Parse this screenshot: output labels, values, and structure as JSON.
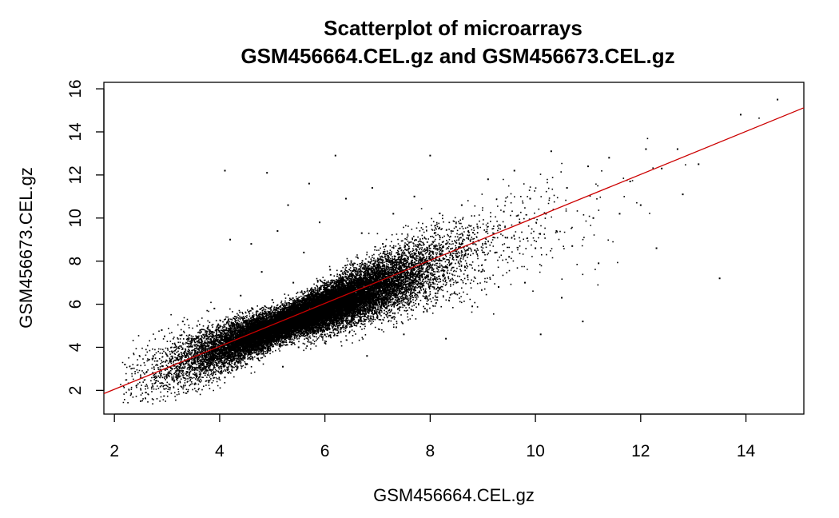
{
  "chart_data": {
    "type": "scatter",
    "title": "Scatterplot of microarrays",
    "subtitle": "GSM456664.CEL.gz and GSM456673.CEL.gz",
    "xlabel": "GSM456664.CEL.gz",
    "ylabel": "GSM456673.CEL.gz",
    "xlim": [
      1.8,
      15.1
    ],
    "ylim": [
      0.9,
      16.3
    ],
    "x_ticks": [
      2,
      4,
      6,
      8,
      10,
      12,
      14
    ],
    "y_ticks": [
      2,
      4,
      6,
      8,
      10,
      12,
      14,
      16
    ],
    "x_tick_labels": [
      "2",
      "4",
      "6",
      "8",
      "10",
      "12",
      "14"
    ],
    "y_tick_labels": [
      "2",
      "4",
      "6",
      "8",
      "10",
      "12",
      "14",
      "16"
    ],
    "grid": false,
    "legend": "none",
    "point_color": "#000000",
    "fit_line": {
      "color": "#cc0000",
      "points": [
        [
          1.8,
          1.85
        ],
        [
          15.1,
          15.12
        ]
      ]
    },
    "series": [
      {
        "points": [
          [
            2.2,
            3.2
          ],
          [
            2.5,
            1.5
          ],
          [
            2.6,
            1.9
          ],
          [
            2.8,
            2.6
          ],
          [
            2.9,
            4.8
          ],
          [
            3.1,
            2.5
          ],
          [
            3.2,
            3.5
          ],
          [
            3.3,
            2.9
          ],
          [
            3.3,
            5.2
          ],
          [
            3.5,
            3.6
          ],
          [
            3.6,
            4.3
          ],
          [
            3.7,
            3.0
          ],
          [
            3.9,
            3.9
          ],
          [
            3.9,
            5.8
          ],
          [
            4.0,
            4.2
          ],
          [
            4.1,
            2.6
          ],
          [
            4.1,
            12.2
          ],
          [
            4.2,
            4.8
          ],
          [
            4.2,
            9.0
          ],
          [
            4.3,
            3.6
          ],
          [
            4.4,
            4.5
          ],
          [
            4.4,
            6.4
          ],
          [
            4.5,
            5.1
          ],
          [
            4.5,
            3.2
          ],
          [
            4.6,
            4.4
          ],
          [
            4.6,
            8.8
          ],
          [
            4.7,
            5.5
          ],
          [
            4.7,
            3.9
          ],
          [
            4.8,
            4.6
          ],
          [
            4.8,
            7.5
          ],
          [
            4.9,
            5.0
          ],
          [
            4.9,
            12.1
          ],
          [
            5.0,
            4.3
          ],
          [
            5.0,
            6.2
          ],
          [
            5.1,
            5.2
          ],
          [
            5.1,
            9.4
          ],
          [
            5.2,
            4.7
          ],
          [
            5.2,
            3.1
          ],
          [
            5.3,
            5.6
          ],
          [
            5.3,
            10.6
          ],
          [
            5.4,
            5.0
          ],
          [
            5.4,
            7.0
          ],
          [
            5.5,
            5.3
          ],
          [
            5.5,
            4.0
          ],
          [
            5.6,
            5.8
          ],
          [
            5.6,
            8.4
          ],
          [
            5.7,
            5.4
          ],
          [
            5.7,
            11.6
          ],
          [
            5.8,
            6.0
          ],
          [
            5.8,
            4.5
          ],
          [
            5.9,
            5.6
          ],
          [
            5.9,
            9.8
          ],
          [
            6.0,
            6.2
          ],
          [
            6.0,
            4.2
          ],
          [
            6.1,
            5.9
          ],
          [
            6.1,
            7.6
          ],
          [
            6.2,
            6.4
          ],
          [
            6.2,
            12.9
          ],
          [
            6.3,
            6.0
          ],
          [
            6.3,
            4.9
          ],
          [
            6.4,
            6.6
          ],
          [
            6.4,
            10.9
          ],
          [
            6.5,
            6.1
          ],
          [
            6.5,
            8.0
          ],
          [
            6.6,
            6.8
          ],
          [
            6.6,
            5.0
          ],
          [
            6.7,
            6.4
          ],
          [
            6.7,
            9.3
          ],
          [
            6.8,
            7.0
          ],
          [
            6.8,
            3.6
          ],
          [
            6.9,
            6.5
          ],
          [
            6.9,
            11.4
          ],
          [
            7.0,
            7.2
          ],
          [
            7.0,
            5.4
          ],
          [
            7.1,
            6.8
          ],
          [
            7.1,
            8.8
          ],
          [
            7.2,
            7.4
          ],
          [
            7.3,
            6.0
          ],
          [
            7.3,
            10.2
          ],
          [
            7.4,
            7.1
          ],
          [
            7.5,
            7.6
          ],
          [
            7.5,
            4.6
          ],
          [
            7.6,
            6.9
          ],
          [
            7.7,
            8.3
          ],
          [
            7.7,
            11.0
          ],
          [
            7.8,
            7.8
          ],
          [
            7.9,
            5.8
          ],
          [
            8.0,
            8.1
          ],
          [
            8.0,
            12.9
          ],
          [
            8.1,
            6.5
          ],
          [
            8.2,
            8.5
          ],
          [
            8.3,
            4.4
          ],
          [
            8.4,
            9.4
          ],
          [
            8.5,
            7.0
          ],
          [
            8.6,
            10.6
          ],
          [
            8.7,
            8.7
          ],
          [
            8.8,
            5.9
          ],
          [
            8.9,
            9.6
          ],
          [
            9.0,
            7.6
          ],
          [
            9.1,
            11.8
          ],
          [
            9.2,
            9.1
          ],
          [
            9.3,
            6.8
          ],
          [
            9.4,
            10.3
          ],
          [
            9.5,
            8.2
          ],
          [
            9.6,
            12.2
          ],
          [
            9.7,
            9.8
          ],
          [
            9.8,
            7.0
          ],
          [
            9.9,
            10.9
          ],
          [
            10.0,
            8.6
          ],
          [
            10.1,
            4.6
          ],
          [
            10.2,
            10.2
          ],
          [
            10.3,
            13.1
          ],
          [
            10.4,
            9.4
          ],
          [
            10.5,
            6.3
          ],
          [
            10.6,
            11.4
          ],
          [
            10.7,
            8.7
          ],
          [
            10.9,
            5.2
          ],
          [
            11.0,
            12.4
          ],
          [
            11.1,
            10.0
          ],
          [
            11.2,
            7.9
          ],
          [
            11.4,
            12.8
          ],
          [
            11.6,
            10.2
          ],
          [
            11.8,
            11.7
          ],
          [
            12.0,
            10.6
          ],
          [
            12.1,
            13.2
          ],
          [
            12.3,
            8.6
          ],
          [
            12.4,
            12.3
          ],
          [
            12.7,
            13.2
          ],
          [
            12.8,
            11.1
          ],
          [
            13.1,
            12.5
          ],
          [
            13.5,
            7.2
          ],
          [
            13.9,
            14.8
          ],
          [
            14.6,
            15.5
          ]
        ]
      }
    ]
  }
}
